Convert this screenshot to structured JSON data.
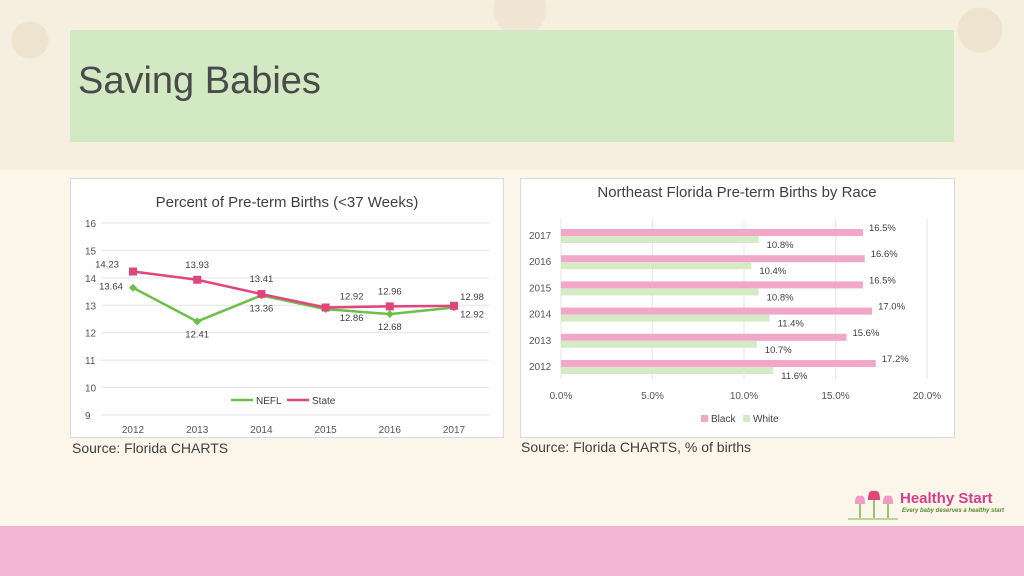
{
  "slide": {
    "title": "Saving Babies",
    "source_left": "Source: Florida CHARTS",
    "source_right": "Source: Florida CHARTS, % of births"
  },
  "logo": {
    "name": "Healthy Start",
    "tagline": "Every baby deserves a healthy start"
  },
  "colors": {
    "nefl": "#6cc04a",
    "state": "#e0457b",
    "black": "#f2a7c9",
    "white": "#d5ebc5",
    "title_band": "#d3e9c3",
    "bottom_band": "#f3b6d4"
  },
  "chart_data": [
    {
      "type": "line",
      "title": "Percent of Pre-term Births (<37 Weeks)",
      "x": [
        "2012",
        "2013",
        "2014",
        "2015",
        "2016",
        "2017"
      ],
      "series": [
        {
          "name": "NEFL",
          "values": [
            13.64,
            12.41,
            13.36,
            12.86,
            12.68,
            12.92
          ]
        },
        {
          "name": "State",
          "values": [
            14.23,
            13.93,
            13.41,
            12.92,
            12.96,
            12.98
          ]
        }
      ],
      "ylim": [
        9,
        16
      ],
      "yticks": [
        9,
        10,
        11,
        12,
        13,
        14,
        15,
        16
      ],
      "grid": true,
      "legend": "bottom"
    },
    {
      "type": "bar",
      "orientation": "horizontal",
      "title": "Northeast Florida Pre-term Births by Race",
      "categories": [
        "2017",
        "2016",
        "2015",
        "2014",
        "2013",
        "2012"
      ],
      "series": [
        {
          "name": "Black",
          "values": [
            16.5,
            16.6,
            16.5,
            17.0,
            15.6,
            17.2
          ],
          "labels": [
            "16.5%",
            "16.6%",
            "16.5%",
            "17.0%",
            "15.6%",
            "17.2%"
          ]
        },
        {
          "name": "White",
          "values": [
            10.8,
            10.4,
            10.8,
            11.4,
            10.7,
            11.6
          ],
          "labels": [
            "10.8%",
            "10.4%",
            "10.8%",
            "11.4%",
            "10.7%",
            "11.6%"
          ]
        }
      ],
      "xlim": [
        0,
        20
      ],
      "xticks": [
        "0.0%",
        "5.0%",
        "10.0%",
        "15.0%",
        "20.0%"
      ],
      "grid": true,
      "legend": "bottom"
    }
  ]
}
